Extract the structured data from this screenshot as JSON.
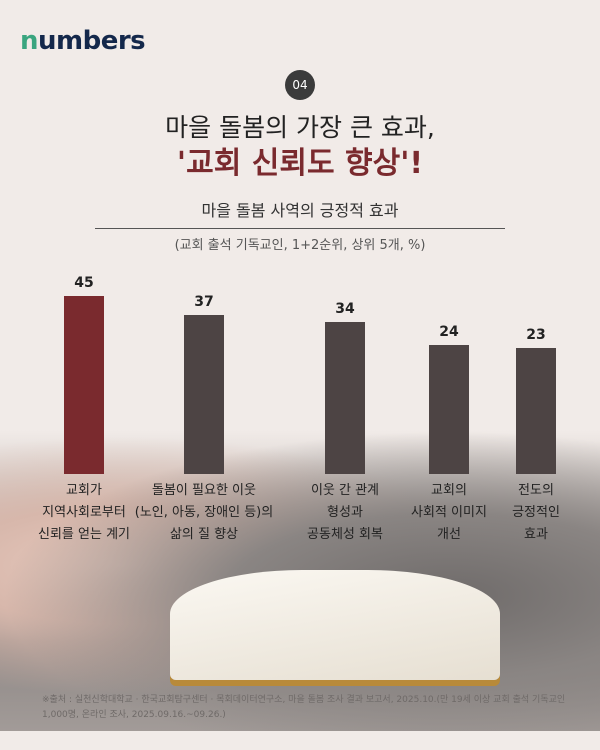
{
  "brand": {
    "logo": "numbers"
  },
  "badge": "04",
  "title_line1": "마을 돌봄의 가장 큰 효과,",
  "title_line2": "'교회 신뢰도 향상'!",
  "chart_data": {
    "type": "bar",
    "title": "마을 돌봄 사역의 긍정적 효과",
    "subtitle": "(교회 출석 기독교인, 1+2순위, 상위 5개, %)",
    "categories": [
      "교회가\n지역사회로부터\n신뢰를 얻는 계기",
      "돌봄이 필요한 이웃\n(노인, 아동, 장애인 등)의\n삶의 질 향상",
      "이웃 간 관계\n형성과\n공동체성 회복",
      "교회의\n사회적 이미지\n개선",
      "전도의\n긍정적인\n효과"
    ],
    "values": [
      45,
      37,
      34,
      24,
      23
    ],
    "colors": [
      "#7a2a2e",
      "#4d4444",
      "#4d4444",
      "#4d4444",
      "#4d4444"
    ],
    "grid": false
  },
  "source": "※출처 : 실천신학대학교 · 한국교회탐구센터 · 목회데이터연구소, 마을 돌봄 조사 결과 보고서, 2025.10.(만 19세 이상 교회 출석 기독교인 1,000명, 온라인 조사, 2025.09.16.~09.26.)"
}
